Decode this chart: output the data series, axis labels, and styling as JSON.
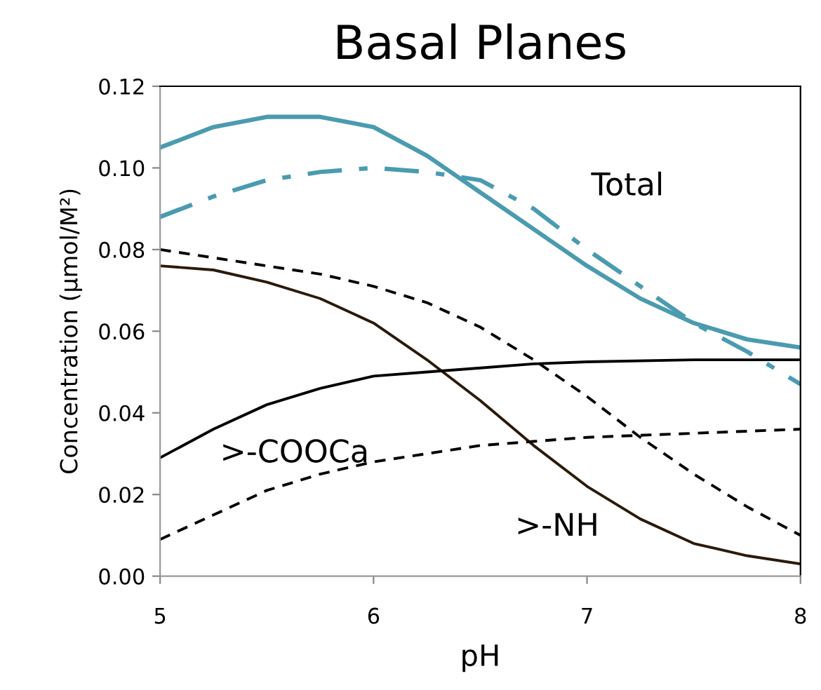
{
  "chart_data": {
    "type": "line",
    "title": "Basal Planes",
    "xlabel": "pH",
    "ylabel": "Concentration (µmol/M²)",
    "xlim": [
      5,
      8
    ],
    "xticks": [
      5,
      6,
      7,
      8
    ],
    "ylim": [
      0,
      0.12
    ],
    "yticks": [
      {
        "value": 0,
        "label": "0.00"
      },
      {
        "value": 0.02,
        "label": "0.02"
      },
      {
        "value": 0.04,
        "label": "0.04"
      },
      {
        "value": 0.06,
        "label": "0.06"
      },
      {
        "value": 0.08,
        "label": "0.08"
      },
      {
        "value": 0.1,
        "label": "0.10"
      },
      {
        "value": 0.12,
        "label": "0.12"
      }
    ],
    "grid": false,
    "legend": false,
    "marker": "none",
    "series": [
      {
        "color": "#4a9bb0",
        "line_style": "solid",
        "x": [
          5,
          5.25,
          5.5,
          5.75,
          6,
          6.25,
          6.5,
          6.75,
          7,
          7.25,
          7.5,
          7.75,
          8
        ],
        "values": [
          0.105,
          0.11,
          0.1125,
          0.1125,
          0.11,
          0.103,
          0.094,
          0.085,
          0.076,
          0.068,
          0.062,
          0.058,
          0.056
        ]
      },
      {
        "color": "#4a9bb0",
        "line_style": "dashdot",
        "x": [
          5,
          5.25,
          5.5,
          5.75,
          6,
          6.25,
          6.5,
          6.75,
          7,
          7.25,
          7.5,
          7.75,
          8
        ],
        "values": [
          0.088,
          0.093,
          0.097,
          0.099,
          0.1,
          0.099,
          0.097,
          0.09,
          0.08,
          0.071,
          0.062,
          0.055,
          0.047
        ]
      },
      {
        "color": "#000000",
        "line_style": "dashed",
        "x": [
          5,
          5.25,
          5.5,
          5.75,
          6,
          6.25,
          6.5,
          6.75,
          7,
          7.25,
          7.5,
          7.75,
          8
        ],
        "values": [
          0.08,
          0.078,
          0.076,
          0.074,
          0.071,
          0.067,
          0.061,
          0.053,
          0.044,
          0.034,
          0.025,
          0.017,
          0.01
        ]
      },
      {
        "color": "#2b1a0a",
        "line_style": "solid",
        "x": [
          5,
          5.25,
          5.5,
          5.75,
          6,
          6.25,
          6.5,
          6.75,
          7,
          7.25,
          7.5,
          7.75,
          8
        ],
        "values": [
          0.076,
          0.075,
          0.072,
          0.068,
          0.062,
          0.053,
          0.043,
          0.032,
          0.022,
          0.014,
          0.008,
          0.005,
          0.003
        ]
      },
      {
        "color": "#000000",
        "line_style": "solid",
        "x": [
          5,
          5.25,
          5.5,
          5.75,
          6,
          6.25,
          6.5,
          6.75,
          7,
          7.5,
          8
        ],
        "values": [
          0.029,
          0.036,
          0.042,
          0.046,
          0.049,
          0.05,
          0.051,
          0.052,
          0.0525,
          0.053,
          0.053
        ]
      },
      {
        "color": "#000000",
        "line_style": "dashed",
        "x": [
          5,
          5.25,
          5.5,
          5.75,
          6,
          6.25,
          6.5,
          6.75,
          7,
          7.5,
          8
        ],
        "values": [
          0.009,
          0.015,
          0.021,
          0.025,
          0.028,
          0.03,
          0.032,
          0.033,
          0.034,
          0.035,
          0.036
        ]
      }
    ],
    "annotations": [
      "Total",
      ">-COOCa",
      ">-NH"
    ]
  }
}
